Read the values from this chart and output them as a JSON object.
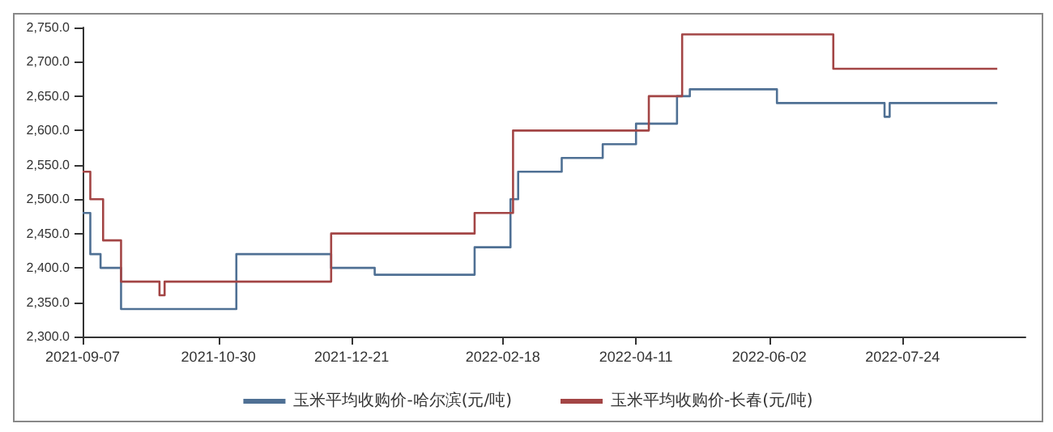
{
  "chart_data": {
    "type": "step",
    "xlim": [
      "2021-09-07",
      "2022-09-10"
    ],
    "xticks": [
      "2021-09-07",
      "2021-10-30",
      "2021-12-21",
      "2022-02-18",
      "2022-04-11",
      "2022-06-02",
      "2022-07-24"
    ],
    "ylim": [
      2300,
      2750
    ],
    "yticks": [
      {
        "value": 2300,
        "label": "2,300.0"
      },
      {
        "value": 2350,
        "label": "2,350.0"
      },
      {
        "value": 2400,
        "label": "2,400.0"
      },
      {
        "value": 2450,
        "label": "2,450.0"
      },
      {
        "value": 2500,
        "label": "2,500.0"
      },
      {
        "value": 2550,
        "label": "2,550.0"
      },
      {
        "value": 2600,
        "label": "2,600.0"
      },
      {
        "value": 2650,
        "label": "2,650.0"
      },
      {
        "value": 2700,
        "label": "2,700.0"
      },
      {
        "value": 2750,
        "label": "2,750.0"
      }
    ],
    "grid": false,
    "legend": "bottom",
    "marker": "none",
    "line_style": "solid",
    "series": [
      {
        "name": "玉米平均收购价-哈尔滨(元/吨)",
        "color": "#4f7094",
        "x": [
          "2021-09-07",
          "2021-09-10",
          "2021-09-14",
          "2021-09-22",
          "2021-11-06",
          "2021-12-13",
          "2021-12-30",
          "2022-02-07",
          "2022-02-21",
          "2022-02-24",
          "2022-03-13",
          "2022-03-29",
          "2022-04-11",
          "2022-04-27",
          "2022-05-02",
          "2022-06-05",
          "2022-07-17",
          "2022-07-19",
          "2022-08-30"
        ],
        "values": [
          2480,
          2420,
          2400,
          2340,
          2420,
          2400,
          2390,
          2430,
          2500,
          2540,
          2560,
          2580,
          2610,
          2650,
          2660,
          2640,
          2620,
          2640,
          2640
        ]
      },
      {
        "name": "玉米平均收购价-长春(元/吨)",
        "color": "#a34545",
        "x": [
          "2021-09-07",
          "2021-09-10",
          "2021-09-15",
          "2021-09-22",
          "2021-10-07",
          "2021-10-09",
          "2021-12-13",
          "2022-02-07",
          "2022-02-22",
          "2022-04-16",
          "2022-04-29",
          "2022-06-27",
          "2022-08-30"
        ],
        "values": [
          2540,
          2500,
          2440,
          2380,
          2360,
          2380,
          2450,
          2480,
          2600,
          2650,
          2740,
          2690,
          2690
        ]
      }
    ]
  }
}
